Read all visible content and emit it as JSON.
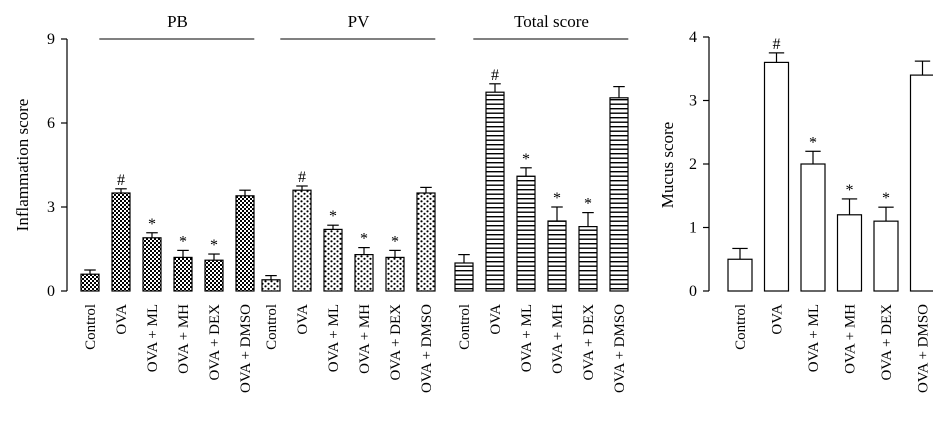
{
  "chart_data": [
    {
      "type": "bar",
      "ylabel": "Inflammation score",
      "ylim": [
        0,
        9
      ],
      "yticks": [
        0,
        3,
        6,
        9
      ],
      "categories": [
        "Control",
        "OVA",
        "OVA + ML",
        "OVA + MH",
        "OVA + DEX",
        "OVA + DMSO"
      ],
      "groups": [
        {
          "name": "PB",
          "pattern": "checker",
          "values": [
            0.6,
            3.5,
            1.9,
            1.2,
            1.1,
            3.4
          ],
          "errors": [
            0.15,
            0.15,
            0.18,
            0.25,
            0.22,
            0.2
          ],
          "markers": [
            "",
            "#",
            "*",
            "*",
            "*",
            ""
          ]
        },
        {
          "name": "PV",
          "pattern": "dots",
          "values": [
            0.4,
            3.6,
            2.2,
            1.3,
            1.2,
            3.5
          ],
          "errors": [
            0.15,
            0.15,
            0.15,
            0.25,
            0.25,
            0.2
          ],
          "markers": [
            "",
            "#",
            "*",
            "*",
            "*",
            ""
          ]
        },
        {
          "name": "Total score",
          "pattern": "hlines",
          "values": [
            1.0,
            7.1,
            4.1,
            2.5,
            2.3,
            6.9
          ],
          "errors": [
            0.3,
            0.3,
            0.3,
            0.5,
            0.5,
            0.4
          ],
          "markers": [
            "",
            "#",
            "*",
            "*",
            "*",
            ""
          ]
        }
      ]
    },
    {
      "type": "bar",
      "ylabel": "Mucus score",
      "ylim": [
        0,
        4
      ],
      "yticks": [
        0,
        1,
        2,
        3,
        4
      ],
      "categories": [
        "Control",
        "OVA",
        "OVA + ML",
        "OVA + MH",
        "OVA + DEX",
        "OVA + DMSO"
      ],
      "values": [
        0.5,
        3.6,
        2.0,
        1.2,
        1.1,
        3.4
      ],
      "errors": [
        0.17,
        0.15,
        0.2,
        0.25,
        0.22,
        0.22
      ],
      "markers": [
        "",
        "#",
        "*",
        "*",
        "*",
        ""
      ],
      "pattern": "none"
    }
  ]
}
